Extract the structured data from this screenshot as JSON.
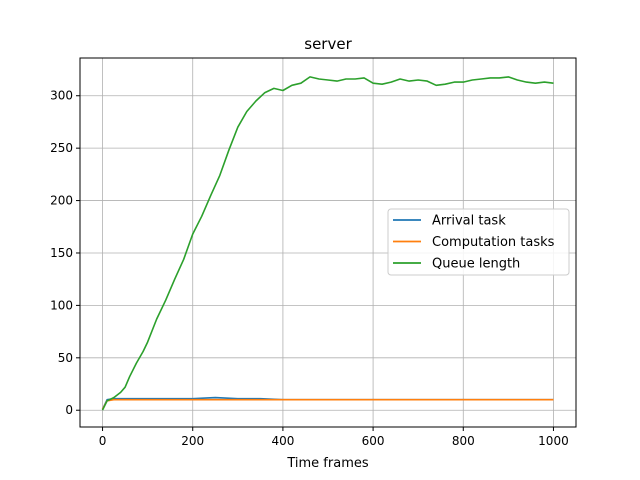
{
  "chart_data": {
    "type": "line",
    "title": "server",
    "xlabel": "Time frames",
    "ylabel": "",
    "xlim": [
      -50,
      1050
    ],
    "ylim": [
      -16,
      336
    ],
    "xticks": [
      0,
      200,
      400,
      600,
      800,
      1000
    ],
    "yticks": [
      0,
      50,
      100,
      150,
      200,
      250,
      300
    ],
    "xtick_labels": [
      "0",
      "200",
      "400",
      "600",
      "800",
      "1000"
    ],
    "ytick_labels": [
      "0",
      "50",
      "100",
      "150",
      "200",
      "250",
      "300"
    ],
    "grid": true,
    "legend_position": "center-right",
    "series": [
      {
        "name": "Arrival task",
        "color": "#1f77b4",
        "x": [
          0,
          10,
          25,
          50,
          75,
          100,
          150,
          200,
          250,
          300,
          350,
          400,
          450,
          500,
          550,
          600,
          650,
          700,
          750,
          800,
          850,
          900,
          950,
          1000
        ],
        "y": [
          1,
          10,
          11,
          11,
          11,
          11,
          11,
          11,
          12,
          11,
          11,
          10,
          10,
          10,
          10,
          10,
          10,
          10,
          10,
          10,
          10,
          10,
          10,
          10
        ]
      },
      {
        "name": "Computation tasks",
        "color": "#ff7f0e",
        "x": [
          0,
          10,
          25,
          50,
          75,
          100,
          150,
          200,
          250,
          300,
          350,
          400,
          450,
          500,
          550,
          600,
          650,
          700,
          750,
          800,
          850,
          900,
          950,
          1000
        ],
        "y": [
          1,
          9,
          10,
          10,
          10,
          10,
          10,
          10,
          10,
          10,
          10,
          10,
          10,
          10,
          10,
          10,
          10,
          10,
          10,
          10,
          10,
          10,
          10,
          10
        ]
      },
      {
        "name": "Queue length",
        "color": "#2ca02c",
        "x": [
          0,
          10,
          25,
          40,
          50,
          60,
          75,
          90,
          100,
          120,
          140,
          160,
          180,
          200,
          220,
          240,
          260,
          280,
          300,
          320,
          340,
          360,
          380,
          400,
          420,
          440,
          460,
          480,
          500,
          520,
          540,
          560,
          580,
          600,
          620,
          640,
          660,
          680,
          700,
          720,
          740,
          760,
          780,
          800,
          820,
          840,
          860,
          880,
          900,
          920,
          940,
          960,
          980,
          1000
        ],
        "y": [
          0,
          9,
          12,
          17,
          22,
          32,
          45,
          56,
          65,
          87,
          105,
          125,
          144,
          168,
          185,
          205,
          224,
          248,
          270,
          285,
          295,
          303,
          307,
          305,
          310,
          312,
          318,
          316,
          315,
          314,
          316,
          316,
          317,
          312,
          311,
          313,
          316,
          314,
          315,
          314,
          310,
          311,
          313,
          313,
          315,
          316,
          317,
          317,
          318,
          315,
          313,
          312,
          313,
          312
        ]
      }
    ]
  }
}
